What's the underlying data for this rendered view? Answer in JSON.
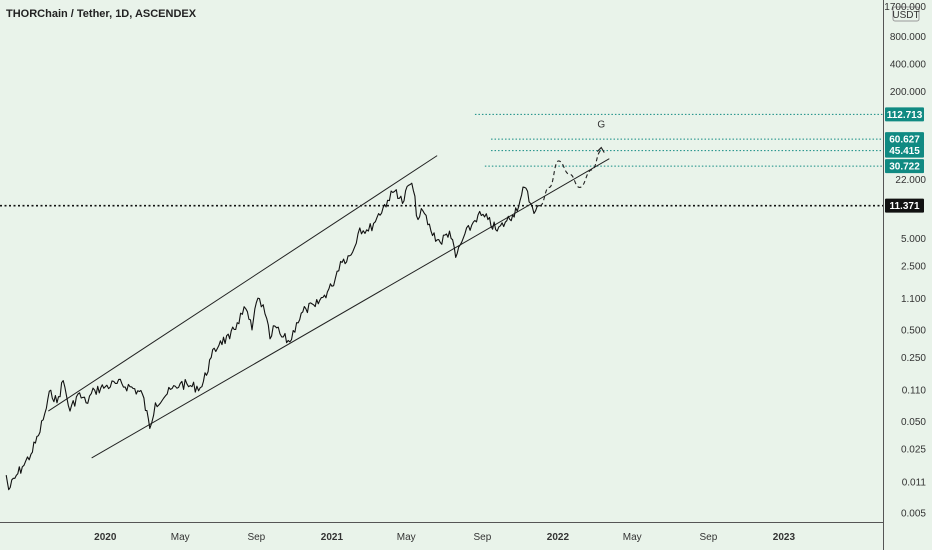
{
  "chart_data": {
    "type": "line",
    "title": "THORChain / Tether, 1D, ASCENDEX",
    "currency": "USDT",
    "y_scale": "log",
    "ylim": [
      0.004,
      2000
    ],
    "x_range": [
      "2019-07-15",
      "2023-06-10"
    ],
    "x_ticks": [
      {
        "label": "2020",
        "date": "2020-01-01"
      },
      {
        "label": "May",
        "date": "2020-05-01"
      },
      {
        "label": "Sep",
        "date": "2020-09-01"
      },
      {
        "label": "2021",
        "date": "2021-01-01"
      },
      {
        "label": "May",
        "date": "2021-05-01"
      },
      {
        "label": "Sep",
        "date": "2021-09-01"
      },
      {
        "label": "2022",
        "date": "2022-01-01"
      },
      {
        "label": "May",
        "date": "2022-05-01"
      },
      {
        "label": "Sep",
        "date": "2022-09-01"
      },
      {
        "label": "2023",
        "date": "2023-01-01"
      }
    ],
    "y_ticks": [
      {
        "label": "1700.000",
        "value": 1700
      },
      {
        "label": "800.000",
        "value": 800
      },
      {
        "label": "400.000",
        "value": 400
      },
      {
        "label": "200.000",
        "value": 200
      },
      {
        "label": "22.000",
        "value": 22
      },
      {
        "label": "5.000",
        "value": 5
      },
      {
        "label": "2.500",
        "value": 2.5
      },
      {
        "label": "1.100",
        "value": 1.1
      },
      {
        "label": "0.500",
        "value": 0.5
      },
      {
        "label": "0.250",
        "value": 0.25
      },
      {
        "label": "0.110",
        "value": 0.11
      },
      {
        "label": "0.050",
        "value": 0.05
      },
      {
        "label": "0.025",
        "value": 0.025
      },
      {
        "label": "0.011",
        "value": 0.011
      },
      {
        "label": "0.005",
        "value": 0.005
      }
    ],
    "series": [
      {
        "color": "#111111",
        "points": [
          [
            "2019-07-25",
            0.013
          ],
          [
            "2019-07-29",
            0.009
          ],
          [
            "2019-08-08",
            0.012
          ],
          [
            "2019-08-20",
            0.016
          ],
          [
            "2019-09-03",
            0.022
          ],
          [
            "2019-09-15",
            0.035
          ],
          [
            "2019-09-28",
            0.07
          ],
          [
            "2019-10-05",
            0.11
          ],
          [
            "2019-10-15",
            0.08
          ],
          [
            "2019-10-25",
            0.14
          ],
          [
            "2019-11-05",
            0.065
          ],
          [
            "2019-11-18",
            0.1
          ],
          [
            "2019-12-01",
            0.08
          ],
          [
            "2019-12-15",
            0.11
          ],
          [
            "2020-01-01",
            0.12
          ],
          [
            "2020-01-20",
            0.13
          ],
          [
            "2020-02-10",
            0.12
          ],
          [
            "2020-03-01",
            0.1
          ],
          [
            "2020-03-13",
            0.042
          ],
          [
            "2020-03-22",
            0.08
          ],
          [
            "2020-04-10",
            0.1
          ],
          [
            "2020-05-01",
            0.13
          ],
          [
            "2020-05-20",
            0.12
          ],
          [
            "2020-06-05",
            0.12
          ],
          [
            "2020-06-20",
            0.25
          ],
          [
            "2020-07-05",
            0.38
          ],
          [
            "2020-07-20",
            0.4
          ],
          [
            "2020-08-01",
            0.6
          ],
          [
            "2020-08-15",
            0.85
          ],
          [
            "2020-08-25",
            0.5
          ],
          [
            "2020-09-01",
            1.0
          ],
          [
            "2020-09-06",
            1.1
          ],
          [
            "2020-09-15",
            0.75
          ],
          [
            "2020-09-23",
            0.4
          ],
          [
            "2020-10-01",
            0.55
          ],
          [
            "2020-10-12",
            0.42
          ],
          [
            "2020-10-25",
            0.37
          ],
          [
            "2020-11-05",
            0.6
          ],
          [
            "2020-11-20",
            0.85
          ],
          [
            "2020-12-05",
            0.9
          ],
          [
            "2020-12-20",
            1.2
          ],
          [
            "2021-01-01",
            1.5
          ],
          [
            "2021-01-15",
            2.8
          ],
          [
            "2021-02-01",
            3.3
          ],
          [
            "2021-02-15",
            6.5
          ],
          [
            "2021-03-01",
            6.0
          ],
          [
            "2021-03-15",
            8.5
          ],
          [
            "2021-04-01",
            13
          ],
          [
            "2021-04-15",
            17
          ],
          [
            "2021-04-25",
            12
          ],
          [
            "2021-05-05",
            19
          ],
          [
            "2021-05-10",
            20
          ],
          [
            "2021-05-20",
            8
          ],
          [
            "2021-05-28",
            10
          ],
          [
            "2021-06-10",
            6
          ],
          [
            "2021-06-25",
            4.5
          ],
          [
            "2021-07-10",
            6
          ],
          [
            "2021-07-20",
            3.1
          ],
          [
            "2021-08-01",
            5
          ],
          [
            "2021-08-15",
            7
          ],
          [
            "2021-08-25",
            9
          ],
          [
            "2021-09-10",
            8
          ],
          [
            "2021-09-25",
            6
          ],
          [
            "2021-10-08",
            7.5
          ],
          [
            "2021-10-20",
            9
          ],
          [
            "2021-11-01",
            13
          ],
          [
            "2021-11-08",
            18
          ],
          [
            "2021-11-18",
            12
          ],
          [
            "2021-11-26",
            10
          ],
          [
            "2021-12-03",
            11.371
          ]
        ]
      }
    ],
    "annotations": {
      "channel_upper": [
        [
          "2019-10-01",
          0.065
        ],
        [
          "2021-06-20",
          40
        ]
      ],
      "channel_lower": [
        [
          "2019-12-10",
          0.02
        ],
        [
          "2022-03-25",
          37
        ]
      ],
      "projection": [
        [
          "2021-12-03",
          11.371
        ],
        [
          "2021-12-18",
          18
        ],
        [
          "2022-01-02",
          35
        ],
        [
          "2022-01-20",
          25
        ],
        [
          "2022-02-05",
          18
        ],
        [
          "2022-02-25",
          28
        ],
        [
          "2022-03-12",
          45.415
        ]
      ],
      "target_label": {
        "text": "G",
        "date": "2022-03-12",
        "value": 75
      },
      "current_price": {
        "label": "11.371",
        "value": 11.371,
        "color": "#111111"
      },
      "levels": [
        {
          "label": "112.713",
          "value": 112.713,
          "from_date": "2021-08-20",
          "color": "#108a82"
        },
        {
          "label": "60.627",
          "value": 60.627,
          "from_date": "2021-09-15",
          "color": "#108a82"
        },
        {
          "label": "45.415",
          "value": 45.415,
          "from_date": "2021-09-15",
          "color": "#108a82"
        },
        {
          "label": "30.722",
          "value": 30.722,
          "from_date": "2021-09-05",
          "color": "#108a82"
        }
      ]
    },
    "colors": {
      "background": "#e9f3ea",
      "line": "#111111",
      "accent": "#108a82"
    },
    "grid": false,
    "legend": "none"
  }
}
